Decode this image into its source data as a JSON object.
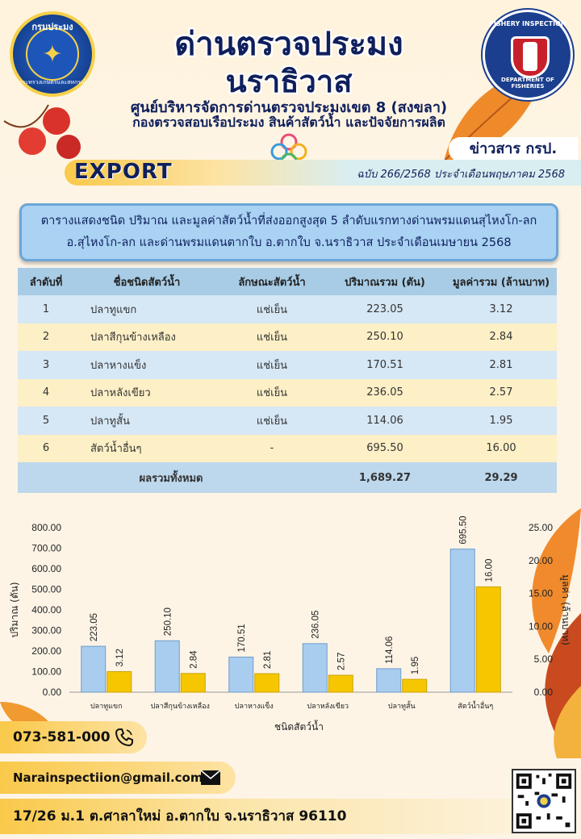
{
  "header": {
    "logo_left_top": "กรมประมง",
    "logo_left_bottom": "กระทรวงเกษตรและสหกรณ์",
    "logo_right_top": "FISHERY INSPECTION",
    "logo_right_bottom": "DEPARTMENT OF FISHERIES",
    "title_line1": "ด่านตรวจประมง",
    "title_line2": "นราธิวาส",
    "subtitle1": "ศูนย์บริหารจัดการด่านตรวจประมงเขต 8 (สงขลา)",
    "subtitle2": "กองตรวจสอบเรือประมง สินค้าสัตว์น้ำ และปัจจัยการผลิต",
    "news_label": "ข่าวสาร กรป.",
    "export_label": "EXPORT",
    "issue": "ฉบับ 266/2568 ประจำเดือนพฤษภาคม  2568"
  },
  "banner": {
    "line1": "ตารางแสดงชนิด ปริมาณ และมูลค่าสัตว์น้ำที่ส่งออกสูงสุด 5 ลำดับแรกทางด่านพรมแดนสุไหงโก-ลก",
    "line2": "อ.สุไหงโก-ลก และด่านพรมแดนตากใบ  อ.ตากใบ  จ.นราธิวาส  ประจำเดือนเมษายน  2568"
  },
  "table": {
    "headers": [
      "ลำดับที่",
      "ชื่อชนิดสัตว์น้ำ",
      "ลักษณะสัตว์น้ำ",
      "ปริมาณรวม (ตัน)",
      "มูลค่ารวม (ล้านบาท)"
    ],
    "rows": [
      [
        "1",
        "ปลาทูแขก",
        "แช่เย็น",
        "223.05",
        "3.12"
      ],
      [
        "2",
        "ปลาสีกุนข้างเหลือง",
        "แช่เย็น",
        "250.10",
        "2.84"
      ],
      [
        "3",
        "ปลาหางแข็ง",
        "แช่เย็น",
        "170.51",
        "2.81"
      ],
      [
        "4",
        "ปลาหลังเขียว",
        "แช่เย็น",
        "236.05",
        "2.57"
      ],
      [
        "5",
        "ปลาทูสั้น",
        "แช่เย็น",
        "114.06",
        "1.95"
      ],
      [
        "6",
        "สัตว์น้ำอื่นๆ",
        "-",
        "695.50",
        "16.00"
      ]
    ],
    "total_label": "ผลรวมทั้งหมด",
    "total_qty": "1,689.27",
    "total_value": "29.29"
  },
  "chart_data": {
    "type": "bar",
    "categories": [
      "ปลาทูแขก",
      "ปลาสีกุนข้างเหลือง",
      "ปลาหางแข็ง",
      "ปลาหลังเขียว",
      "ปลาทูสั้น",
      "สัตว์น้ำอื่นๆ"
    ],
    "series": [
      {
        "name": "ปริมาณ (ตัน)",
        "axis": "left",
        "color": "#a9cdee",
        "values": [
          223.05,
          250.1,
          170.51,
          236.05,
          114.06,
          695.5
        ]
      },
      {
        "name": "มูลค่า (ล้านบาท)",
        "axis": "right",
        "color": "#f6c700",
        "values": [
          3.12,
          2.84,
          2.81,
          2.57,
          1.95,
          16.0
        ]
      }
    ],
    "xlabel": "ชนิดสัตว์น้ำ",
    "ylabel": "ปริมาณ (ตัน)",
    "y2label": "มูลค่า (ล้านบาท)",
    "ylim": [
      0,
      800
    ],
    "y2lim": [
      0,
      25
    ],
    "yticks": [
      "0.00",
      "100.00",
      "200.00",
      "300.00",
      "400.00",
      "500.00",
      "600.00",
      "700.00",
      "800.00"
    ],
    "y2ticks": [
      "0.00",
      "5.00",
      "10.00",
      "15.00",
      "20.00",
      "25.00"
    ],
    "grid": false
  },
  "contact": {
    "phone": "073-581-000",
    "email": "Narainspectiion@gmail.com",
    "address": "17/26 ม.1 ต.ศาลาใหม่ อ.ตากใบ จ.นราธิวาส 96110"
  }
}
